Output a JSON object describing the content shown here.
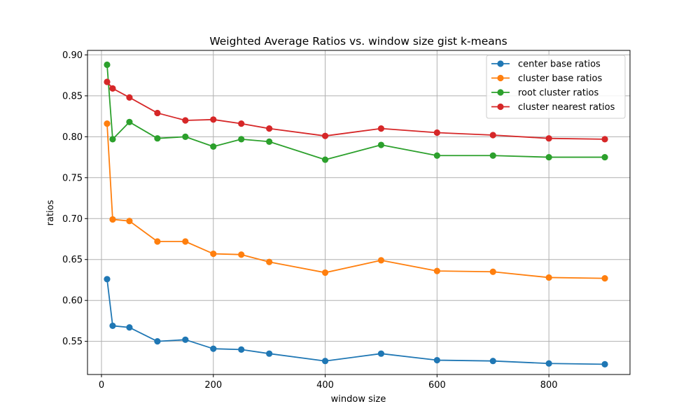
{
  "chart_data": {
    "type": "line",
    "title": "Weighted Average Ratios vs. window size gist k-means",
    "xlabel": "window size",
    "ylabel": "ratios",
    "xlim": [
      -25,
      945
    ],
    "ylim": [
      0.5095,
      0.9055
    ],
    "xticks": [
      0,
      200,
      400,
      600,
      800
    ],
    "yticks": [
      0.55,
      0.6,
      0.65,
      0.7,
      0.75,
      0.8,
      0.85,
      0.9
    ],
    "grid": true,
    "legend_position": "top-right",
    "x": [
      10,
      20,
      50,
      100,
      150,
      200,
      250,
      300,
      400,
      500,
      600,
      700,
      800,
      900
    ],
    "series": [
      {
        "name": "center base ratios",
        "color": "#1f77b4",
        "values": [
          0.626,
          0.569,
          0.567,
          0.55,
          0.552,
          0.541,
          0.54,
          0.535,
          0.526,
          0.535,
          0.527,
          0.526,
          0.523,
          0.522
        ]
      },
      {
        "name": "cluster base ratios",
        "color": "#ff7f0e",
        "values": [
          0.816,
          0.699,
          0.697,
          0.672,
          0.672,
          0.657,
          0.656,
          0.647,
          0.634,
          0.649,
          0.636,
          0.635,
          0.628,
          0.627
        ]
      },
      {
        "name": "root cluster ratios",
        "color": "#2ca02c",
        "values": [
          0.888,
          0.797,
          0.818,
          0.798,
          0.8,
          0.788,
          0.797,
          0.794,
          0.772,
          0.79,
          0.777,
          0.777,
          0.775,
          0.775
        ]
      },
      {
        "name": "cluster nearest ratios",
        "color": "#d62728",
        "values": [
          0.867,
          0.859,
          0.848,
          0.829,
          0.82,
          0.821,
          0.816,
          0.81,
          0.801,
          0.81,
          0.805,
          0.802,
          0.798,
          0.797
        ]
      }
    ]
  }
}
